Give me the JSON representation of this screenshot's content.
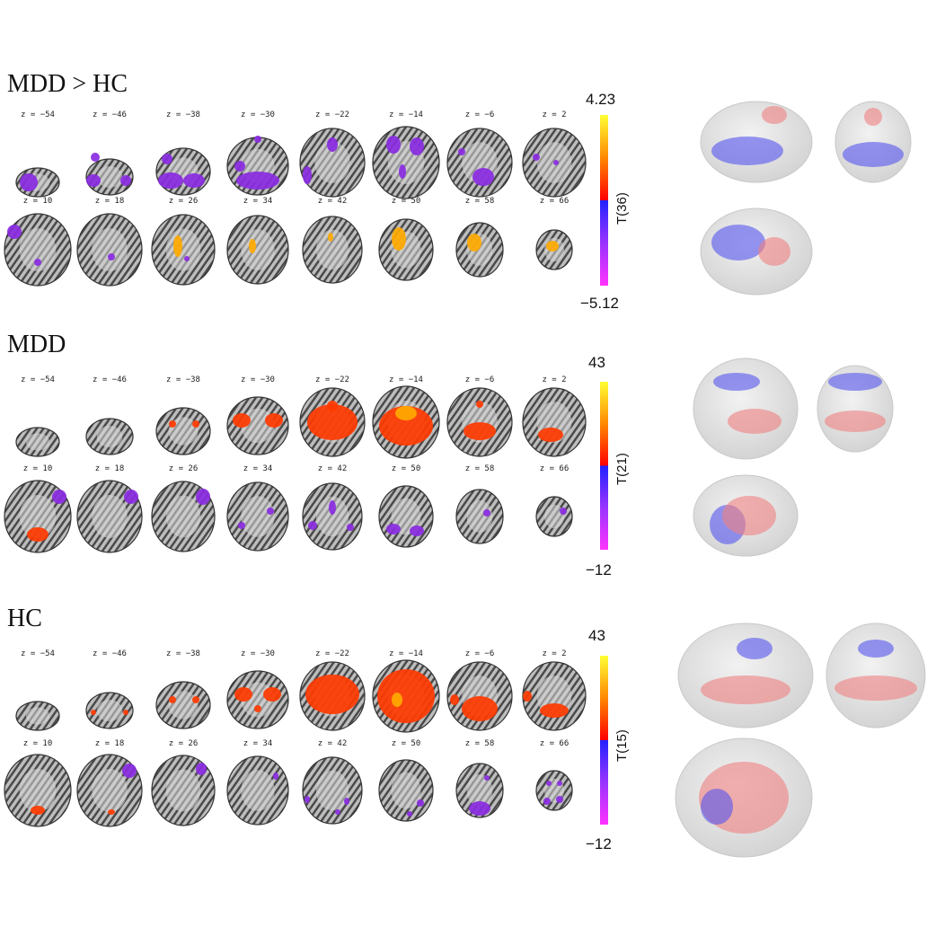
{
  "slice_labels": [
    "z = −54",
    "z = −46",
    "z = −38",
    "z = −30",
    "z = −22",
    "z = −14",
    "z = −6",
    "z = 2",
    "z = 10",
    "z = 18",
    "z = 26",
    "z = 34",
    "z = 42",
    "z = 50",
    "z = 58",
    "z = 66"
  ],
  "panels": [
    {
      "title": "MDD > HC",
      "cbar_max": "4.23",
      "cbar_min": "−5.12",
      "cbar_label": "T(36)"
    },
    {
      "title": "MDD",
      "cbar_max": "43",
      "cbar_min": "−12",
      "cbar_label": "T(21)"
    },
    {
      "title": "HC",
      "cbar_max": "43",
      "cbar_min": "−12",
      "cbar_label": "T(15)"
    }
  ],
  "colors": {
    "positive": "#ff3300",
    "positive_high": "#ffee00",
    "negative": "#3333ff",
    "negative_low": "#ff33ff"
  }
}
